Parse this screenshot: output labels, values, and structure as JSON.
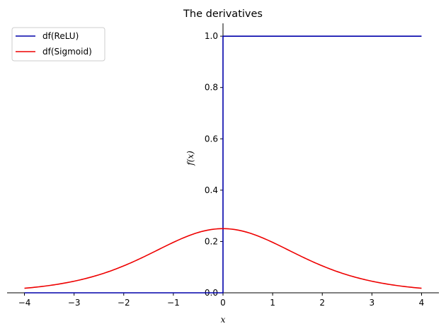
{
  "chart_data": {
    "type": "line",
    "title": "The derivatives",
    "xlabel": "x",
    "ylabel": "f(x)",
    "xlim": [
      -4.35,
      4.35
    ],
    "ylim": [
      0,
      1.05
    ],
    "xticks": [
      -4,
      -3,
      -2,
      -1,
      0,
      1,
      2,
      3,
      4
    ],
    "xtick_labels": [
      "−4",
      "−3",
      "−2",
      "−1",
      "0",
      "1",
      "2",
      "3",
      "4"
    ],
    "yticks": [
      0.0,
      0.2,
      0.4,
      0.6,
      0.8,
      1.0
    ],
    "ytick_labels": [
      "0.0",
      "0.2",
      "0.4",
      "0.6",
      "0.8",
      "1.0"
    ],
    "legend_position": "top-left",
    "grid": false,
    "series": [
      {
        "name": "df(ReLU)",
        "color": "#0000aa",
        "x": [
          -4,
          0,
          0,
          4
        ],
        "y": [
          0,
          0,
          1,
          1
        ]
      },
      {
        "name": "df(Sigmoid)",
        "color": "#ee0000",
        "x": [
          -4,
          -3.5,
          -3,
          -2.5,
          -2,
          -1.5,
          -1,
          -0.5,
          0,
          0.5,
          1,
          1.5,
          2,
          2.5,
          3,
          3.5,
          4
        ],
        "y": [
          0.018,
          0.028,
          0.045,
          0.07,
          0.105,
          0.149,
          0.197,
          0.235,
          0.25,
          0.235,
          0.197,
          0.149,
          0.105,
          0.07,
          0.045,
          0.028,
          0.018
        ]
      }
    ]
  }
}
